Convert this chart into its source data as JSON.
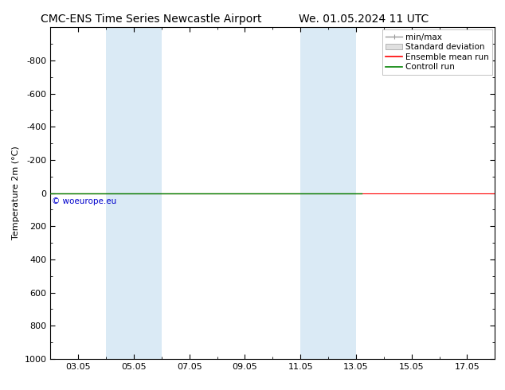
{
  "title_left": "CMC-ENS Time Series Newcastle Airport",
  "title_right": "We. 01.05.2024 11 UTC",
  "ylabel": "Temperature 2m (°C)",
  "ylim_top": -1000,
  "ylim_bottom": 1000,
  "yticks": [
    -800,
    -600,
    -400,
    -200,
    0,
    200,
    400,
    600,
    800,
    1000
  ],
  "x_min": 2.0,
  "x_max": 18.0,
  "xtick_labels": [
    "03.05",
    "05.05",
    "07.05",
    "09.05",
    "11.05",
    "13.05",
    "15.05",
    "17.05"
  ],
  "xtick_positions": [
    3,
    5,
    7,
    9,
    11,
    13,
    15,
    17
  ],
  "shaded_bands": [
    {
      "x_start": 4.0,
      "x_end": 6.0
    },
    {
      "x_start": 11.0,
      "x_end": 13.0
    }
  ],
  "shade_color": "#daeaf5",
  "control_run_y": 0,
  "control_run_x_end": 13.2,
  "ensemble_mean_y": 0,
  "control_run_color": "#008000",
  "ensemble_mean_color": "#ff0000",
  "watermark": "© woeurope.eu",
  "watermark_color": "#0000cc",
  "background_color": "#ffffff",
  "plot_bg_color": "#ffffff",
  "legend_labels": [
    "min/max",
    "Standard deviation",
    "Ensemble mean run",
    "Controll run"
  ],
  "legend_colors": [
    "#999999",
    "#cccccc",
    "#ff0000",
    "#008000"
  ],
  "title_fontsize": 10,
  "axis_label_fontsize": 8,
  "tick_fontsize": 8,
  "legend_fontsize": 7.5
}
